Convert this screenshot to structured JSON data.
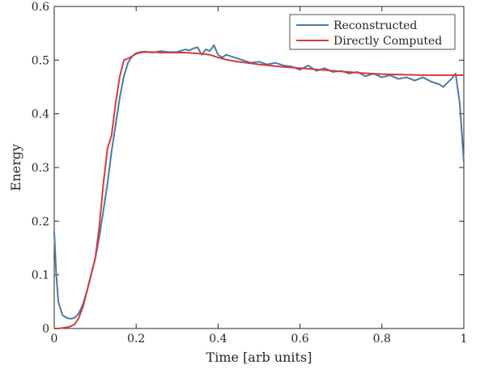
{
  "chart_data": {
    "type": "line",
    "title": "",
    "xlabel": "Time [arb units]",
    "ylabel": "Energy",
    "xlim": [
      0,
      1
    ],
    "ylim": [
      0,
      0.6
    ],
    "xticks": [
      0,
      0.2,
      0.4,
      0.6,
      0.8,
      1
    ],
    "xtick_labels": [
      "0",
      "0.2",
      "0.4",
      "0.6",
      "0.8",
      "1"
    ],
    "yticks": [
      0,
      0.1,
      0.2,
      0.3,
      0.4,
      0.5,
      0.6
    ],
    "ytick_labels": [
      "0",
      "0.1",
      "0.2",
      "0.3",
      "0.4",
      "0.5",
      "0.6"
    ],
    "grid": false,
    "legend_position": "top-right",
    "series": [
      {
        "name": "Reconstructed",
        "color": "#4a7aa6",
        "x": [
          0,
          0.005,
          0.01,
          0.02,
          0.03,
          0.04,
          0.05,
          0.06,
          0.07,
          0.08,
          0.09,
          0.1,
          0.11,
          0.12,
          0.13,
          0.14,
          0.15,
          0.16,
          0.17,
          0.18,
          0.19,
          0.2,
          0.21,
          0.22,
          0.23,
          0.24,
          0.26,
          0.28,
          0.3,
          0.32,
          0.33,
          0.34,
          0.35,
          0.36,
          0.37,
          0.38,
          0.39,
          0.4,
          0.41,
          0.42,
          0.44,
          0.46,
          0.48,
          0.5,
          0.52,
          0.54,
          0.56,
          0.58,
          0.6,
          0.62,
          0.64,
          0.66,
          0.68,
          0.7,
          0.72,
          0.74,
          0.76,
          0.78,
          0.8,
          0.82,
          0.84,
          0.86,
          0.88,
          0.9,
          0.92,
          0.94,
          0.95,
          0.96,
          0.97,
          0.98,
          0.99,
          1.0
        ],
        "y": [
          0.18,
          0.1,
          0.05,
          0.025,
          0.02,
          0.018,
          0.02,
          0.028,
          0.045,
          0.07,
          0.1,
          0.13,
          0.17,
          0.22,
          0.27,
          0.33,
          0.38,
          0.43,
          0.47,
          0.495,
          0.507,
          0.513,
          0.515,
          0.516,
          0.515,
          0.514,
          0.517,
          0.515,
          0.515,
          0.52,
          0.518,
          0.522,
          0.524,
          0.51,
          0.52,
          0.517,
          0.528,
          0.51,
          0.505,
          0.51,
          0.505,
          0.5,
          0.495,
          0.497,
          0.492,
          0.495,
          0.49,
          0.488,
          0.482,
          0.49,
          0.48,
          0.485,
          0.478,
          0.48,
          0.475,
          0.478,
          0.47,
          0.475,
          0.468,
          0.472,
          0.465,
          0.468,
          0.462,
          0.468,
          0.46,
          0.455,
          0.45,
          0.458,
          0.465,
          0.475,
          0.42,
          0.31
        ]
      },
      {
        "name": "Directly Computed",
        "color": "#d63a3a",
        "x": [
          0,
          0.01,
          0.02,
          0.03,
          0.04,
          0.05,
          0.06,
          0.07,
          0.08,
          0.09,
          0.1,
          0.11,
          0.12,
          0.13,
          0.14,
          0.15,
          0.16,
          0.17,
          0.18,
          0.19,
          0.2,
          0.21,
          0.22,
          0.24,
          0.26,
          0.28,
          0.3,
          0.32,
          0.34,
          0.36,
          0.38,
          0.4,
          0.42,
          0.44,
          0.46,
          0.48,
          0.5,
          0.55,
          0.6,
          0.65,
          0.7,
          0.75,
          0.8,
          0.85,
          0.9,
          0.95,
          1.0
        ],
        "y": [
          0,
          0.0,
          0.001,
          0.002,
          0.004,
          0.008,
          0.02,
          0.04,
          0.07,
          0.1,
          0.13,
          0.19,
          0.27,
          0.335,
          0.36,
          0.42,
          0.47,
          0.5,
          0.503,
          0.507,
          0.512,
          0.514,
          0.515,
          0.515,
          0.514,
          0.514,
          0.514,
          0.514,
          0.513,
          0.512,
          0.51,
          0.505,
          0.501,
          0.498,
          0.496,
          0.494,
          0.492,
          0.488,
          0.485,
          0.482,
          0.479,
          0.476,
          0.474,
          0.473,
          0.472,
          0.472,
          0.472
        ]
      }
    ]
  }
}
